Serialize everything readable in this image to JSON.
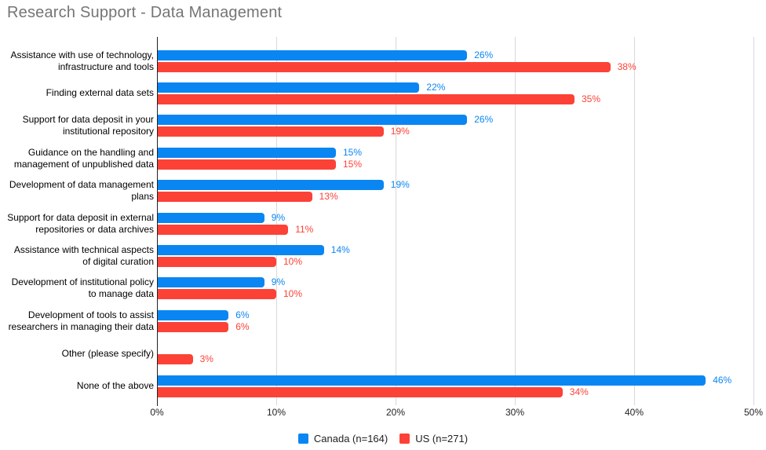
{
  "title": "Research Support - Data Management",
  "chart_data": {
    "type": "bar",
    "orientation": "horizontal",
    "title": "Research Support - Data Management",
    "categories": [
      "Assistance with use of technology,\ninfrastructure and tools",
      "Finding external data sets",
      "Support for data deposit in your\ninstitutional repository",
      "Guidance on the handling and\nmanagement of unpublished data",
      "Development of data management\nplans",
      "Support for data deposit in external\nrepositories or data archives",
      "Assistance with technical aspects\nof digital curation",
      "Development of institutional policy\nto manage data",
      "Development of tools to assist\nresearchers in managing their data",
      "Other (please specify)",
      "None of the above"
    ],
    "series": [
      {
        "name": "Canada (n=164)",
        "color": "#0a86f2",
        "values": [
          26,
          22,
          26,
          15,
          19,
          9,
          14,
          9,
          6,
          null,
          46
        ],
        "labels": [
          "26%",
          "22%",
          "26%",
          "15%",
          "19%",
          "9%",
          "14%",
          "9%",
          "6%",
          null,
          "46%"
        ]
      },
      {
        "name": "US (n=271)",
        "color": "#fc4236",
        "values": [
          38,
          35,
          19,
          15,
          13,
          11,
          10,
          10,
          6,
          3,
          34
        ],
        "labels": [
          "38%",
          "35%",
          "19%",
          "15%",
          "13%",
          "11%",
          "10%",
          "10%",
          "6%",
          "3%",
          "34%"
        ]
      }
    ],
    "value_suffix": "%",
    "xlim": [
      0,
      50
    ],
    "x_ticks": [
      "0%",
      "10%",
      "20%",
      "30%",
      "40%",
      "50%"
    ],
    "x_tick_values": [
      0,
      10,
      20,
      30,
      40,
      50
    ],
    "grid": true,
    "legend_position": "bottom"
  },
  "colors": {
    "title_text": "#757575",
    "axis_line": "#212121",
    "gridline": "#d9d9d9",
    "category_text": "#000000",
    "background": "#ffffff"
  }
}
